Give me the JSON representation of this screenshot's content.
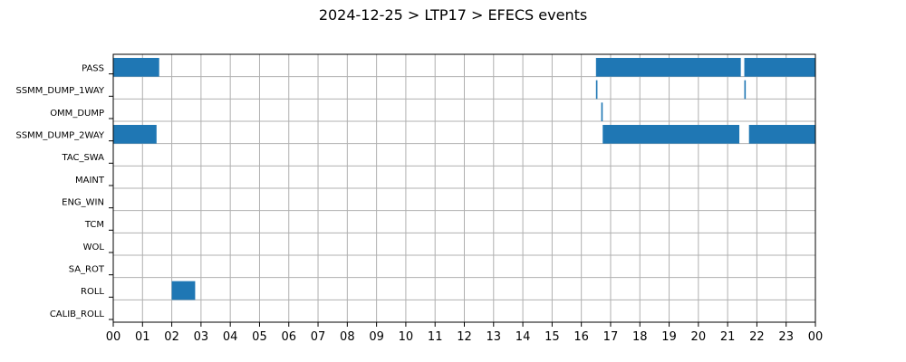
{
  "chart_data": {
    "type": "timeline",
    "title": "2024-12-25 > LTP17 > EFECS events",
    "xlabel": "",
    "ylabel": "",
    "xlim": [
      0,
      24
    ],
    "x_unit": "hour",
    "x_tick_labels": [
      "00",
      "01",
      "02",
      "03",
      "04",
      "05",
      "06",
      "07",
      "08",
      "09",
      "10",
      "11",
      "12",
      "13",
      "14",
      "15",
      "16",
      "17",
      "18",
      "19",
      "20",
      "21",
      "22",
      "23",
      "00"
    ],
    "grid": true,
    "bar_color": "#1f77b4",
    "categories": [
      "PASS",
      "SSMM_DUMP_1WAY",
      "OMM_DUMP",
      "SSMM_DUMP_2WAY",
      "TAC_SWA",
      "MAINT",
      "ENG_WIN",
      "TCM",
      "WOL",
      "SA_ROT",
      "ROLL",
      "CALIB_ROLL"
    ],
    "events": [
      {
        "category": "PASS",
        "start": 0.0,
        "end": 1.57
      },
      {
        "category": "PASS",
        "start": 16.5,
        "end": 21.45
      },
      {
        "category": "PASS",
        "start": 21.57,
        "end": 24.0
      },
      {
        "category": "SSMM_DUMP_1WAY",
        "start": 16.5,
        "end": 16.55
      },
      {
        "category": "SSMM_DUMP_1WAY",
        "start": 21.57,
        "end": 21.62
      },
      {
        "category": "OMM_DUMP",
        "start": 16.68,
        "end": 16.73
      },
      {
        "category": "SSMM_DUMP_2WAY",
        "start": 0.0,
        "end": 1.48
      },
      {
        "category": "SSMM_DUMP_2WAY",
        "start": 16.73,
        "end": 21.4
      },
      {
        "category": "SSMM_DUMP_2WAY",
        "start": 21.73,
        "end": 24.0
      },
      {
        "category": "ROLL",
        "start": 2.0,
        "end": 2.8
      }
    ]
  }
}
